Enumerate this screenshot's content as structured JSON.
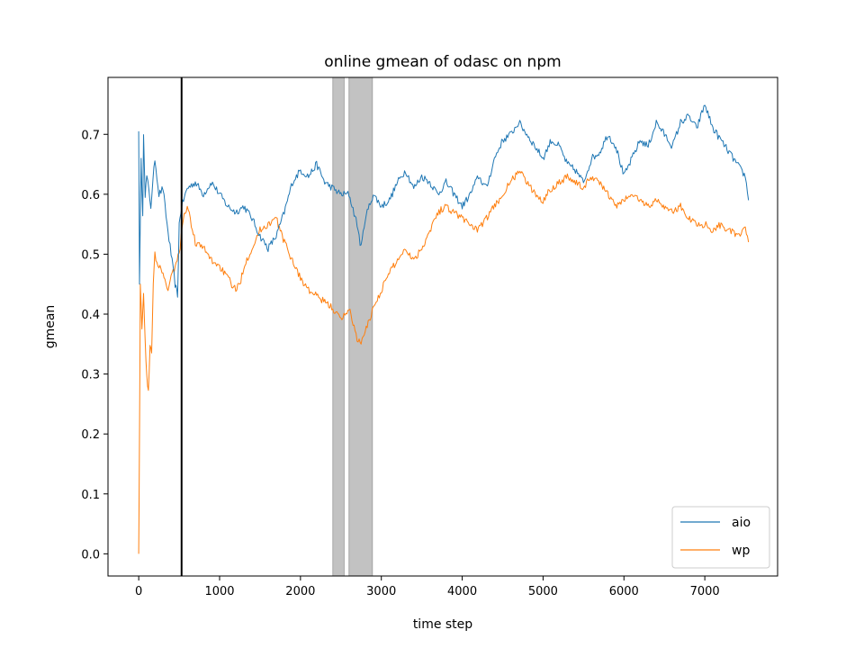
{
  "chart_data": {
    "type": "line",
    "title": "online gmean of odasc on npm",
    "xlabel": "time step",
    "ylabel": "gmean",
    "xlim": [
      -380,
      7900
    ],
    "ylim": [
      -0.037,
      0.795
    ],
    "xticks": [
      0,
      1000,
      2000,
      3000,
      4000,
      5000,
      6000,
      7000
    ],
    "yticks": [
      0.0,
      0.1,
      0.2,
      0.3,
      0.4,
      0.5,
      0.6,
      0.7
    ],
    "ytick_labels": [
      "0.0",
      "0.1",
      "0.2",
      "0.3",
      "0.4",
      "0.5",
      "0.6",
      "0.7"
    ],
    "legend": {
      "position": "lower-right"
    },
    "grid": false,
    "vertical_line": {
      "x": 530,
      "color": "#000000"
    },
    "shaded_spans": [
      {
        "x0": 2400,
        "x1": 2540,
        "color": "#bfbfbf"
      },
      {
        "x0": 2600,
        "x1": 2890,
        "color": "#bfbfbf"
      }
    ],
    "series": [
      {
        "name": "aio",
        "color": "#1f77b4",
        "points": [
          [
            0,
            0.705
          ],
          [
            10,
            0.45
          ],
          [
            30,
            0.66
          ],
          [
            50,
            0.56
          ],
          [
            60,
            0.705
          ],
          [
            80,
            0.6
          ],
          [
            100,
            0.63
          ],
          [
            150,
            0.58
          ],
          [
            200,
            0.66
          ],
          [
            250,
            0.6
          ],
          [
            300,
            0.61
          ],
          [
            350,
            0.55
          ],
          [
            400,
            0.5
          ],
          [
            450,
            0.45
          ],
          [
            480,
            0.43
          ],
          [
            500,
            0.55
          ],
          [
            530,
            0.58
          ],
          [
            600,
            0.61
          ],
          [
            700,
            0.62
          ],
          [
            800,
            0.6
          ],
          [
            900,
            0.62
          ],
          [
            1000,
            0.6
          ],
          [
            1100,
            0.58
          ],
          [
            1200,
            0.57
          ],
          [
            1300,
            0.58
          ],
          [
            1400,
            0.56
          ],
          [
            1500,
            0.53
          ],
          [
            1600,
            0.51
          ],
          [
            1700,
            0.53
          ],
          [
            1800,
            0.57
          ],
          [
            1900,
            0.62
          ],
          [
            2000,
            0.64
          ],
          [
            2100,
            0.63
          ],
          [
            2200,
            0.65
          ],
          [
            2300,
            0.62
          ],
          [
            2400,
            0.61
          ],
          [
            2500,
            0.6
          ],
          [
            2600,
            0.6
          ],
          [
            2700,
            0.55
          ],
          [
            2750,
            0.51
          ],
          [
            2800,
            0.56
          ],
          [
            2900,
            0.6
          ],
          [
            3000,
            0.58
          ],
          [
            3100,
            0.59
          ],
          [
            3200,
            0.62
          ],
          [
            3300,
            0.64
          ],
          [
            3400,
            0.61
          ],
          [
            3500,
            0.63
          ],
          [
            3600,
            0.62
          ],
          [
            3700,
            0.6
          ],
          [
            3800,
            0.62
          ],
          [
            3900,
            0.6
          ],
          [
            4000,
            0.58
          ],
          [
            4100,
            0.6
          ],
          [
            4200,
            0.63
          ],
          [
            4300,
            0.61
          ],
          [
            4400,
            0.66
          ],
          [
            4500,
            0.69
          ],
          [
            4600,
            0.7
          ],
          [
            4700,
            0.72
          ],
          [
            4800,
            0.7
          ],
          [
            4900,
            0.68
          ],
          [
            5000,
            0.66
          ],
          [
            5100,
            0.69
          ],
          [
            5200,
            0.68
          ],
          [
            5300,
            0.65
          ],
          [
            5400,
            0.64
          ],
          [
            5500,
            0.62
          ],
          [
            5600,
            0.66
          ],
          [
            5700,
            0.67
          ],
          [
            5800,
            0.7
          ],
          [
            5900,
            0.68
          ],
          [
            6000,
            0.63
          ],
          [
            6100,
            0.66
          ],
          [
            6200,
            0.69
          ],
          [
            6300,
            0.68
          ],
          [
            6400,
            0.72
          ],
          [
            6500,
            0.7
          ],
          [
            6600,
            0.68
          ],
          [
            6700,
            0.72
          ],
          [
            6800,
            0.73
          ],
          [
            6900,
            0.71
          ],
          [
            7000,
            0.75
          ],
          [
            7100,
            0.71
          ],
          [
            7200,
            0.69
          ],
          [
            7300,
            0.67
          ],
          [
            7400,
            0.65
          ],
          [
            7500,
            0.63
          ],
          [
            7540,
            0.59
          ]
        ]
      },
      {
        "name": "wp",
        "color": "#ff7f0e",
        "points": [
          [
            0,
            0.0
          ],
          [
            10,
            0.2
          ],
          [
            20,
            0.45
          ],
          [
            40,
            0.38
          ],
          [
            60,
            0.44
          ],
          [
            80,
            0.35
          ],
          [
            100,
            0.3
          ],
          [
            120,
            0.27
          ],
          [
            140,
            0.35
          ],
          [
            160,
            0.33
          ],
          [
            180,
            0.45
          ],
          [
            200,
            0.5
          ],
          [
            250,
            0.48
          ],
          [
            300,
            0.47
          ],
          [
            350,
            0.44
          ],
          [
            400,
            0.46
          ],
          [
            450,
            0.48
          ],
          [
            500,
            0.5
          ],
          [
            550,
            0.56
          ],
          [
            600,
            0.58
          ],
          [
            650,
            0.55
          ],
          [
            700,
            0.52
          ],
          [
            800,
            0.51
          ],
          [
            900,
            0.49
          ],
          [
            1000,
            0.48
          ],
          [
            1100,
            0.46
          ],
          [
            1200,
            0.44
          ],
          [
            1250,
            0.45
          ],
          [
            1300,
            0.48
          ],
          [
            1400,
            0.51
          ],
          [
            1500,
            0.54
          ],
          [
            1600,
            0.55
          ],
          [
            1700,
            0.56
          ],
          [
            1800,
            0.52
          ],
          [
            1900,
            0.49
          ],
          [
            2000,
            0.46
          ],
          [
            2100,
            0.44
          ],
          [
            2200,
            0.43
          ],
          [
            2300,
            0.42
          ],
          [
            2400,
            0.41
          ],
          [
            2500,
            0.39
          ],
          [
            2600,
            0.41
          ],
          [
            2700,
            0.36
          ],
          [
            2750,
            0.35
          ],
          [
            2800,
            0.37
          ],
          [
            2900,
            0.41
          ],
          [
            3000,
            0.44
          ],
          [
            3100,
            0.47
          ],
          [
            3200,
            0.49
          ],
          [
            3300,
            0.51
          ],
          [
            3400,
            0.49
          ],
          [
            3500,
            0.51
          ],
          [
            3600,
            0.54
          ],
          [
            3700,
            0.57
          ],
          [
            3800,
            0.58
          ],
          [
            3900,
            0.57
          ],
          [
            4000,
            0.56
          ],
          [
            4100,
            0.55
          ],
          [
            4200,
            0.54
          ],
          [
            4300,
            0.56
          ],
          [
            4400,
            0.58
          ],
          [
            4500,
            0.6
          ],
          [
            4600,
            0.62
          ],
          [
            4700,
            0.64
          ],
          [
            4800,
            0.62
          ],
          [
            4900,
            0.6
          ],
          [
            5000,
            0.59
          ],
          [
            5100,
            0.61
          ],
          [
            5200,
            0.62
          ],
          [
            5300,
            0.63
          ],
          [
            5400,
            0.62
          ],
          [
            5500,
            0.61
          ],
          [
            5600,
            0.63
          ],
          [
            5700,
            0.62
          ],
          [
            5800,
            0.6
          ],
          [
            5900,
            0.58
          ],
          [
            6000,
            0.59
          ],
          [
            6100,
            0.6
          ],
          [
            6200,
            0.59
          ],
          [
            6300,
            0.58
          ],
          [
            6400,
            0.59
          ],
          [
            6500,
            0.58
          ],
          [
            6600,
            0.57
          ],
          [
            6700,
            0.58
          ],
          [
            6800,
            0.56
          ],
          [
            6900,
            0.55
          ],
          [
            7000,
            0.55
          ],
          [
            7100,
            0.54
          ],
          [
            7200,
            0.55
          ],
          [
            7300,
            0.54
          ],
          [
            7400,
            0.53
          ],
          [
            7500,
            0.54
          ],
          [
            7540,
            0.52
          ]
        ]
      }
    ]
  }
}
